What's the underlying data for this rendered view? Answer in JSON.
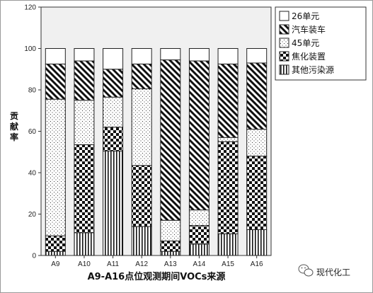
{
  "chart_data": {
    "type": "bar",
    "stacked": true,
    "title": "",
    "xlabel": "A9-A16点位观测期间VOCs来源",
    "ylabel": "贡献率",
    "ylim": [
      0,
      120
    ],
    "yticks": [
      0,
      20,
      40,
      60,
      80,
      100,
      120
    ],
    "categories": [
      "A9",
      "A10",
      "A11",
      "A12",
      "A13",
      "A14",
      "A15",
      "A16"
    ],
    "series": [
      {
        "name": "其他污染源",
        "pattern": "vertical-lines",
        "values": [
          2,
          11,
          50.5,
          14,
          2,
          5.5,
          10.5,
          12.5
        ]
      },
      {
        "name": "焦化装置",
        "pattern": "checker",
        "values": [
          7.5,
          42.5,
          11.5,
          29.5,
          5,
          9,
          44.5,
          35.5
        ]
      },
      {
        "name": "45单元",
        "pattern": "dots",
        "values": [
          66,
          21.5,
          14.5,
          37,
          10,
          7.5,
          2,
          13
        ]
      },
      {
        "name": "汽车装车",
        "pattern": "diagonal",
        "values": [
          17,
          19,
          13.5,
          12,
          77.5,
          72,
          35.5,
          32
        ]
      },
      {
        "name": "26单元",
        "pattern": "white",
        "values": [
          7.5,
          6,
          10,
          7.5,
          5.5,
          6,
          7.5,
          7
        ]
      }
    ],
    "legend_position": "top-right",
    "plot_background": "#f0f0f0"
  },
  "watermark": {
    "text": "现代化工",
    "icon": "wechat-icon"
  }
}
